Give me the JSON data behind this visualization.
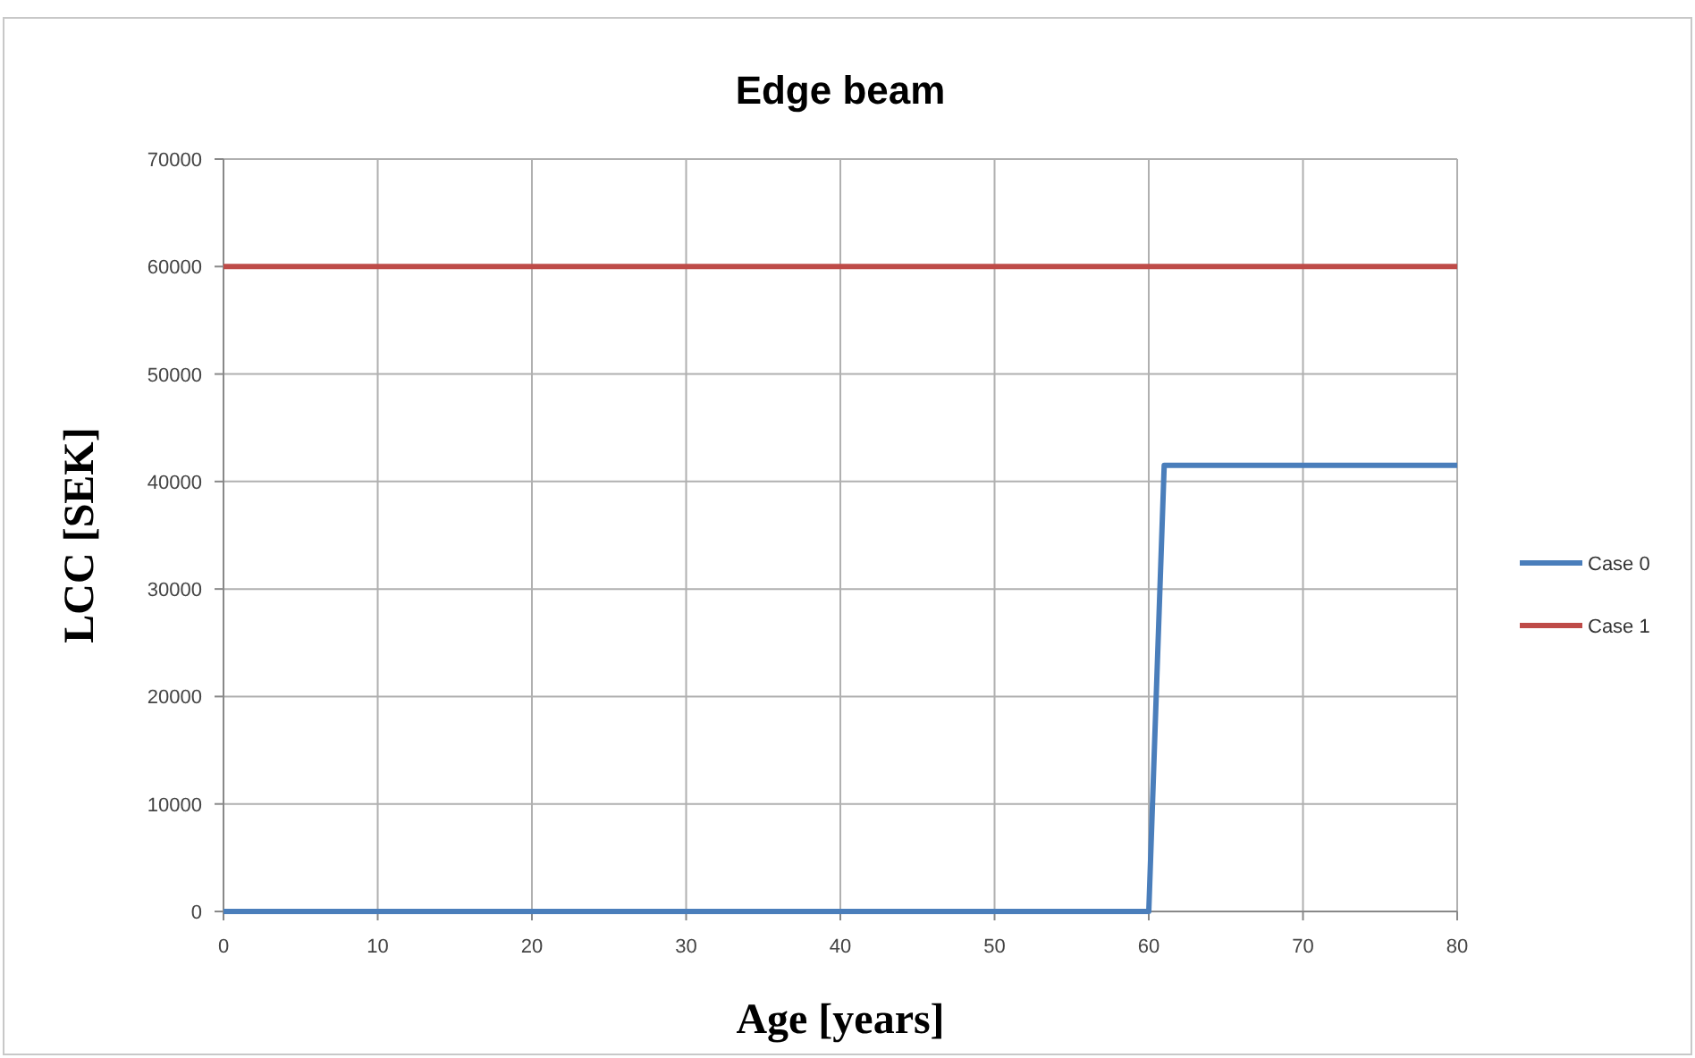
{
  "chart_data": {
    "type": "line",
    "title": "Edge beam",
    "xlabel": "Age [years]",
    "ylabel": "LCC [SEK]",
    "series": [
      {
        "name": "Case 0",
        "color": "#4a7ebb",
        "x": [
          0,
          60,
          61,
          80
        ],
        "values": [
          0,
          0,
          41500,
          41500
        ]
      },
      {
        "name": "Case 1",
        "color": "#be4b48",
        "x": [
          0,
          80
        ],
        "values": [
          60000,
          60000
        ]
      }
    ],
    "xlim": [
      0,
      80
    ],
    "xticks": [
      0,
      10,
      20,
      30,
      40,
      50,
      60,
      70,
      80
    ],
    "ylim": [
      0,
      70000
    ],
    "yticks": [
      0,
      10000,
      20000,
      30000,
      40000,
      50000,
      60000,
      70000
    ],
    "grid": true,
    "legend": "right",
    "line_style": "solid",
    "marker": "none"
  }
}
